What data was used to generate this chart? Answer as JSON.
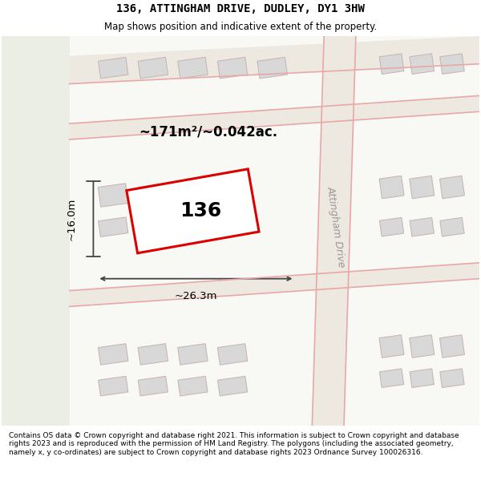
{
  "title": "136, ATTINGHAM DRIVE, DUDLEY, DY1 3HW",
  "subtitle": "Map shows position and indicative extent of the property.",
  "footer": "Contains OS data © Crown copyright and database right 2021. This information is subject to Crown copyright and database rights 2023 and is reproduced with the permission of HM Land Registry. The polygons (including the associated geometry, namely x, y co-ordinates) are subject to Crown copyright and database rights 2023 Ordnance Survey 100026316.",
  "area_label": "~171m²/~0.042ac.",
  "width_label": "~26.3m",
  "height_label": "~16.0m",
  "road_label": "Attingham Drive",
  "plot_number": "136",
  "map_bg": "#ffffff",
  "road_fill": "#ede8e0",
  "plot_outline_color": "#dd0000",
  "building_fill": "#d8d8d8",
  "building_edge": "#c8b8b8",
  "road_line_color": "#e8a8a8",
  "dim_line_color": "#444444",
  "green_fill": "#e8ece2",
  "title_fontsize": 10,
  "subtitle_fontsize": 8.5,
  "footer_fontsize": 6.5
}
